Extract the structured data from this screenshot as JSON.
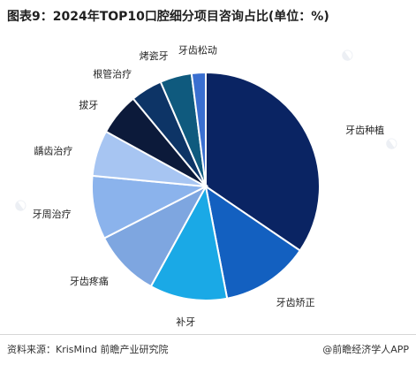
{
  "chart_data": {
    "type": "pie",
    "title": "图表9：2024年TOP10口腔细分项目咨询占比(单位：%)",
    "categories": [
      "牙齿种植",
      "牙齿矫正",
      "补牙",
      "牙齿疼痛",
      "牙周治疗",
      "龋齿治疗",
      "拔牙",
      "根管治疗",
      "烤瓷牙",
      "牙齿松动"
    ],
    "values": [
      34.5,
      12.5,
      11,
      9.5,
      9,
      6.5,
      6,
      4.5,
      4.5,
      2
    ],
    "colors": [
      "#0a2463",
      "#1360c0",
      "#1aa9e6",
      "#7ea6e0",
      "#8bb3ec",
      "#a7c5f2",
      "#0c1a3a",
      "#0d3466",
      "#0f5a7e",
      "#3a6fd0"
    ],
    "legend": "none"
  },
  "footer": {
    "source": "资料来源：KrisMind 前瞻产业研究院",
    "credit": "@前瞻经济学人APP"
  }
}
